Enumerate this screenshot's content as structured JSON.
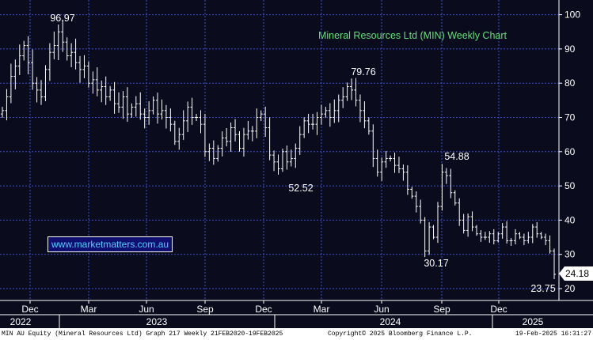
{
  "chart_data": {
    "type": "ohlc",
    "title": "Mineral Resources Ltd (MIN) Weekly Chart",
    "ylim": [
      18,
      104
    ],
    "y_ticks": [
      20,
      30,
      40,
      50,
      60,
      70,
      80,
      90,
      100
    ],
    "x_tick_labels": [
      "Dec",
      "Mar",
      "Jun",
      "Sep",
      "Dec",
      "Mar",
      "Jun",
      "Sep",
      "Dec"
    ],
    "year_labels": [
      "2022",
      "2023",
      "2024",
      "2025"
    ],
    "last_price": "24.18",
    "annotations": [
      {
        "label": "96.97",
        "value": 96.97
      },
      {
        "label": "79.76",
        "value": 79.76
      },
      {
        "label": "52.52",
        "value": 52.52
      },
      {
        "label": "54.88",
        "value": 54.88
      },
      {
        "label": "30.17",
        "value": 30.17
      },
      {
        "label": "23.75",
        "value": 23.75
      }
    ],
    "closes": [
      72,
      76,
      82,
      85,
      88,
      91,
      86,
      80,
      78,
      76,
      84,
      89,
      91,
      95,
      92,
      88,
      89,
      86,
      84,
      85,
      80,
      81,
      78,
      79,
      76,
      78,
      74,
      73,
      76,
      71,
      73,
      74,
      71,
      70,
      72,
      75,
      71,
      72,
      70,
      68,
      63,
      65,
      69,
      73,
      70,
      70,
      68,
      60,
      61,
      58,
      61,
      64,
      63,
      67,
      65,
      61,
      65,
      66,
      66,
      70,
      71,
      67,
      59,
      57,
      55,
      60,
      57,
      58,
      61,
      65,
      69,
      68,
      68,
      70,
      71,
      72,
      70,
      72,
      75,
      76,
      79,
      78,
      75,
      72,
      69,
      66,
      58,
      54,
      57,
      58,
      58,
      56,
      55,
      54,
      49,
      47,
      44,
      40,
      31,
      38,
      35,
      44,
      54,
      53,
      48,
      45,
      40,
      37,
      41,
      38,
      36,
      35,
      35,
      36,
      34,
      36,
      38,
      34,
      34,
      36,
      35,
      34,
      35,
      38,
      36,
      35,
      34,
      31,
      24.18
    ],
    "annotation_weeks": [
      14,
      82,
      58,
      102,
      97,
      127
    ]
  },
  "brand_text": "www.marketmatters.com.au",
  "footer": {
    "left": "MIN AU Equity (Mineral Resources Ltd) Graph 217  Weekly 21FEB2020-19FEB2025",
    "center": "Copyright© 2025 Bloomberg Finance L.P.",
    "right": "19-Feb-2025 16:31:27"
  },
  "colors": {
    "background": "#0b0b1e",
    "grid": "#3b4fc4",
    "bars": "#ffffff",
    "title": "#5fe07a",
    "brand_text": "#4fd0ff"
  }
}
